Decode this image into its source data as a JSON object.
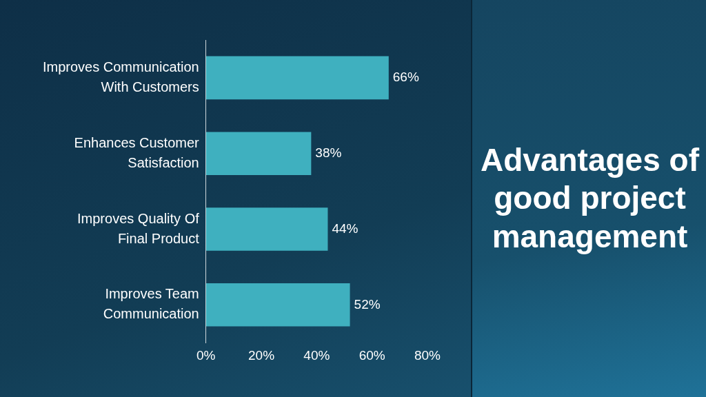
{
  "chart_data": {
    "type": "bar",
    "title": "Advantages of good project management",
    "orientation": "horizontal",
    "categories": [
      "Improves Communication With Customers",
      "Enhances Customer Satisfaction",
      "Improves Quality Of Final Product",
      "Improves Team Communication"
    ],
    "values": [
      66,
      38,
      44,
      52
    ],
    "value_labels": [
      "66%",
      "38%",
      "44%",
      "52%"
    ],
    "color": "#3fb0bf",
    "xlim": [
      0,
      80
    ],
    "xticks": [
      {
        "value": 0,
        "label": "0%"
      },
      {
        "value": 20,
        "label": "20%"
      },
      {
        "value": 40,
        "label": "40%"
      },
      {
        "value": 60,
        "label": "60%"
      },
      {
        "value": 80,
        "label": "80%"
      }
    ],
    "legend": false
  }
}
